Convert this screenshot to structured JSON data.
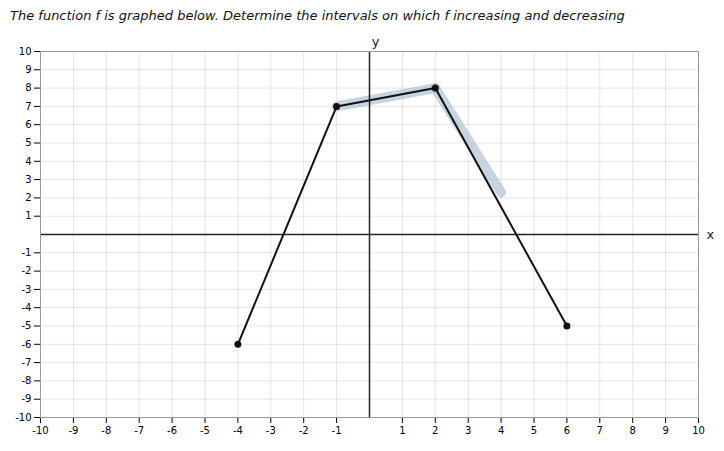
{
  "chart_data": {
    "type": "line",
    "title": "The function f is graphed below. Determine the intervals on which f increasing and decreasing",
    "x": [
      -4,
      -1,
      2,
      6
    ],
    "values": [
      -6,
      7,
      8,
      -5
    ],
    "color": "#111111",
    "marker": "circle",
    "xlabel": "x",
    "ylabel": "y",
    "xlim": [
      -10,
      10
    ],
    "ylim": [
      -10,
      10
    ],
    "xticks": [
      -10,
      -9,
      -8,
      -7,
      -6,
      -5,
      -4,
      -3,
      -2,
      -1,
      1,
      2,
      3,
      4,
      5,
      6,
      7,
      8,
      9,
      10
    ],
    "yticks": [
      -10,
      -9,
      -8,
      -7,
      -6,
      -5,
      -4,
      -3,
      -2,
      -1,
      1,
      2,
      3,
      4,
      5,
      6,
      7,
      8,
      9,
      10
    ],
    "grid": true,
    "highlights": [
      {
        "x": [
          -1,
          2
        ],
        "values": [
          7,
          8
        ],
        "color": "#aabfcf"
      },
      {
        "x": [
          2,
          4
        ],
        "values": [
          8,
          2.3
        ],
        "color": "#aabfcf"
      }
    ]
  }
}
